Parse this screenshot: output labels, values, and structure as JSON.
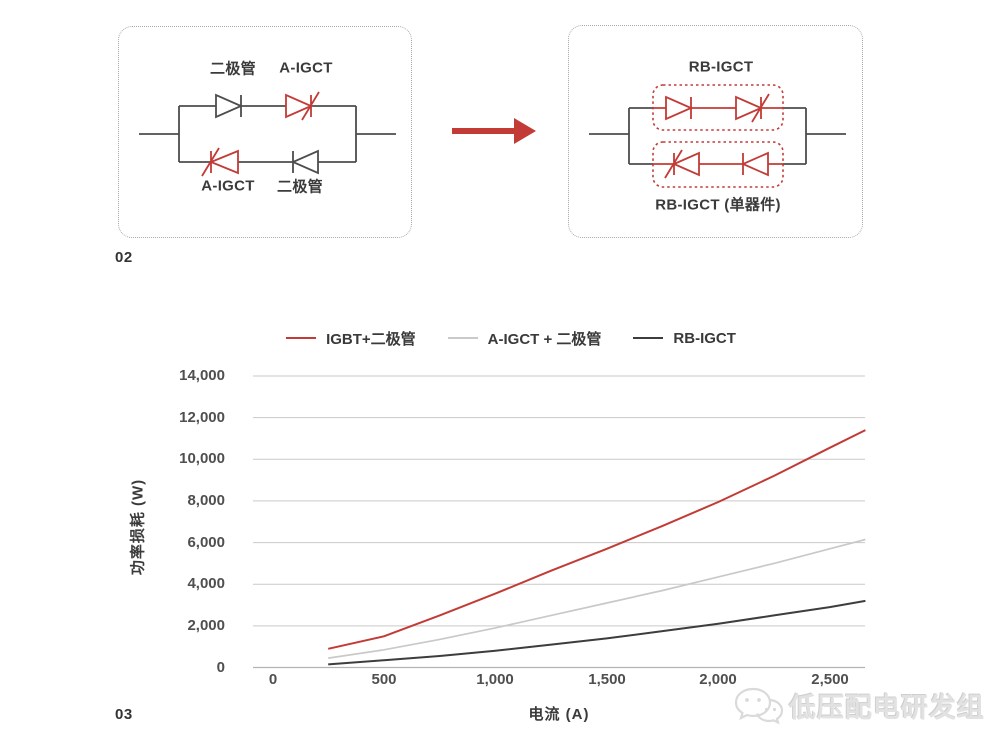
{
  "figure02": {
    "label": "02",
    "left_box": {
      "top_labels": [
        "二极管",
        "A-IGCT"
      ],
      "bottom_labels": [
        "A-IGCT",
        "二极管"
      ]
    },
    "right_box": {
      "top_label": "RB-IGCT",
      "bottom_label": "RB-IGCT (单器件)"
    }
  },
  "figure03": {
    "label": "03"
  },
  "colors": {
    "accent_red": "#c23b36",
    "wire_dark": "#4d4d4d",
    "line_gray": "#c9c9c9",
    "line_black": "#3d3d3d",
    "grid_gray": "#c9c9c9"
  },
  "watermark": {
    "icon": "wechat-icon",
    "text": "低压配电研发组"
  },
  "chart_data": {
    "type": "line",
    "title": "",
    "xlabel": "电流 (A)",
    "ylabel": "功率损耗 (W)",
    "xlim": [
      0,
      2660
    ],
    "ylim": [
      0,
      14000
    ],
    "x_ticks": [
      0,
      500,
      1000,
      1500,
      2000,
      2500
    ],
    "x_tick_labels": [
      "0",
      "500",
      "1,000",
      "1,500",
      "2,000",
      "2,500"
    ],
    "y_ticks": [
      0,
      2000,
      4000,
      6000,
      8000,
      10000,
      12000,
      14000
    ],
    "y_tick_labels": [
      "0",
      "2,000",
      "4,000",
      "6,000",
      "8,000",
      "10,000",
      "12,000",
      "14,000"
    ],
    "grid": "horizontal-only",
    "legend_position": "top-center",
    "series": [
      {
        "name": "IGBT+二极管",
        "color": "#c23b36",
        "stroke_width": 2,
        "x": [
          250,
          500,
          750,
          1000,
          1250,
          1500,
          1750,
          2000,
          2250,
          2500,
          2660
        ],
        "y": [
          900,
          1500,
          2500,
          3550,
          4650,
          5700,
          6800,
          7950,
          9200,
          10550,
          11400
        ]
      },
      {
        "name": "A-IGCT + 二极管",
        "color": "#c9c9c9",
        "stroke_width": 1.7,
        "x": [
          250,
          500,
          750,
          1000,
          1250,
          1500,
          1750,
          2000,
          2250,
          2500,
          2660
        ],
        "y": [
          450,
          850,
          1350,
          1900,
          2500,
          3100,
          3700,
          4350,
          5000,
          5700,
          6150
        ]
      },
      {
        "name": "RB-IGCT",
        "color": "#3d3d3d",
        "stroke_width": 2,
        "x": [
          250,
          500,
          750,
          1000,
          1250,
          1500,
          1750,
          2000,
          2250,
          2500,
          2660
        ],
        "y": [
          150,
          350,
          550,
          800,
          1100,
          1400,
          1750,
          2100,
          2500,
          2900,
          3200
        ]
      }
    ]
  }
}
